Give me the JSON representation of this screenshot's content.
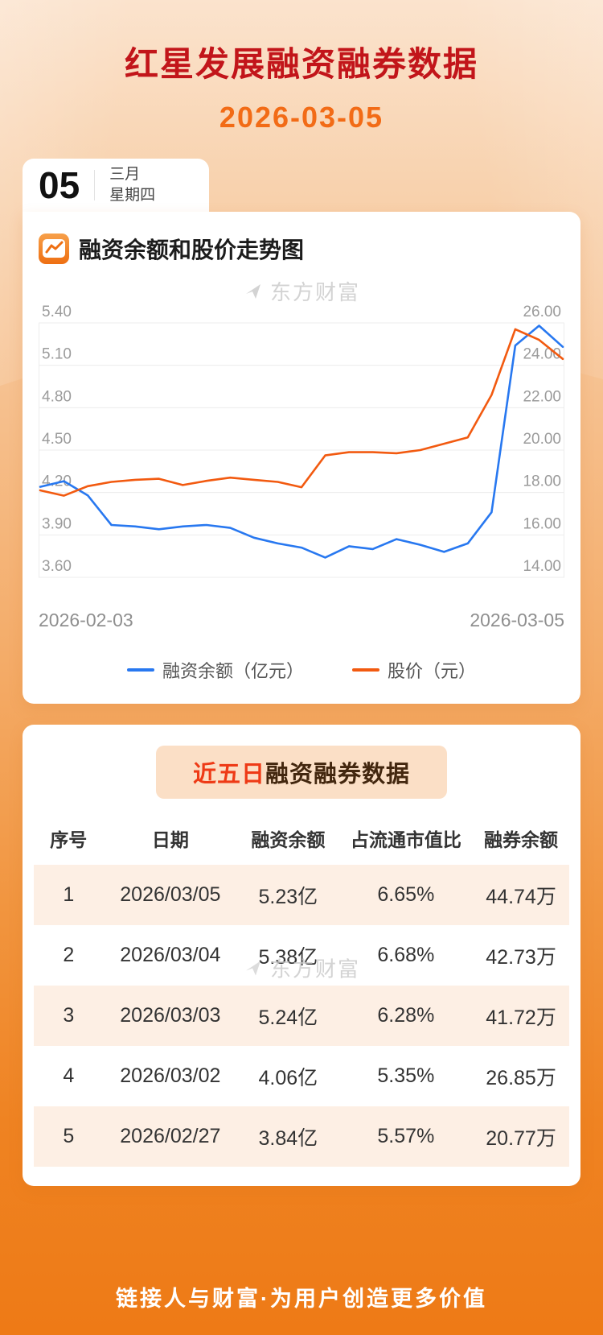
{
  "header": {
    "title": "红星发展融资融券数据",
    "date": "2026-03-05"
  },
  "calendar": {
    "day": "05",
    "month": "三月",
    "weekday": "星期四"
  },
  "chart_section": {
    "title": "融资余额和股价走势图",
    "watermark": "东方财富",
    "legend": [
      {
        "label": "融资余额（亿元）",
        "color": "#2878f0"
      },
      {
        "label": "股价（元）",
        "color": "#f25a10"
      }
    ]
  },
  "chart_data": {
    "type": "line",
    "title": "融资余额和股价走势图",
    "grid": true,
    "legend_position": "bottom",
    "x_labels": [
      "2026-02-03",
      "2026-03-05"
    ],
    "left_axis": {
      "label": "融资余额（亿元）",
      "min": 3.6,
      "max": 5.4,
      "ticks": [
        "5.40",
        "5.10",
        "4.80",
        "4.50",
        "4.20",
        "3.90",
        "3.60"
      ]
    },
    "right_axis": {
      "label": "股价（元）",
      "min": 14,
      "max": 26,
      "ticks": [
        "26.00",
        "24.00",
        "22.00",
        "20.00",
        "18.00",
        "16.00",
        "14.00"
      ]
    },
    "series": [
      {
        "name": "融资余额（亿元）",
        "axis": "left",
        "color": "#2878f0",
        "values": [
          4.24,
          4.28,
          4.18,
          3.97,
          3.96,
          3.94,
          3.96,
          3.97,
          3.95,
          3.88,
          3.84,
          3.81,
          3.74,
          3.82,
          3.8,
          3.87,
          3.83,
          3.78,
          3.84,
          4.06,
          5.24,
          5.38,
          5.23
        ]
      },
      {
        "name": "股价（元）",
        "axis": "right",
        "color": "#f25a10",
        "values": [
          18.1,
          17.85,
          18.3,
          18.5,
          18.6,
          18.65,
          18.35,
          18.55,
          18.7,
          18.6,
          18.5,
          18.25,
          19.75,
          19.9,
          19.9,
          19.85,
          20.0,
          20.3,
          20.6,
          22.6,
          25.7,
          25.2,
          24.3
        ]
      }
    ]
  },
  "table_section": {
    "title_highlight": "近五日",
    "title_rest": "融资融券数据",
    "watermark": "东方财富",
    "columns": [
      "序号",
      "日期",
      "融资余额",
      "占流通市值比",
      "融券余额"
    ],
    "rows": [
      [
        "1",
        "2026/03/05",
        "5.23亿",
        "6.65%",
        "44.74万"
      ],
      [
        "2",
        "2026/03/04",
        "5.38亿",
        "6.68%",
        "42.73万"
      ],
      [
        "3",
        "2026/03/03",
        "5.24亿",
        "6.28%",
        "41.72万"
      ],
      [
        "4",
        "2026/03/02",
        "4.06亿",
        "5.35%",
        "26.85万"
      ],
      [
        "5",
        "2026/02/27",
        "3.84亿",
        "5.57%",
        "20.77万"
      ]
    ]
  },
  "footer": {
    "slogan": "链接人与财富·为用户创造更多价值"
  },
  "colors": {
    "title_red": "#c2151a",
    "date_orange": "#f26b16",
    "highlight_red": "#ee3a16",
    "line_blue": "#2878f0",
    "line_orange": "#f25a10",
    "row_stripe": "#fdefe4",
    "badge_bg": "#fbdfc6"
  }
}
